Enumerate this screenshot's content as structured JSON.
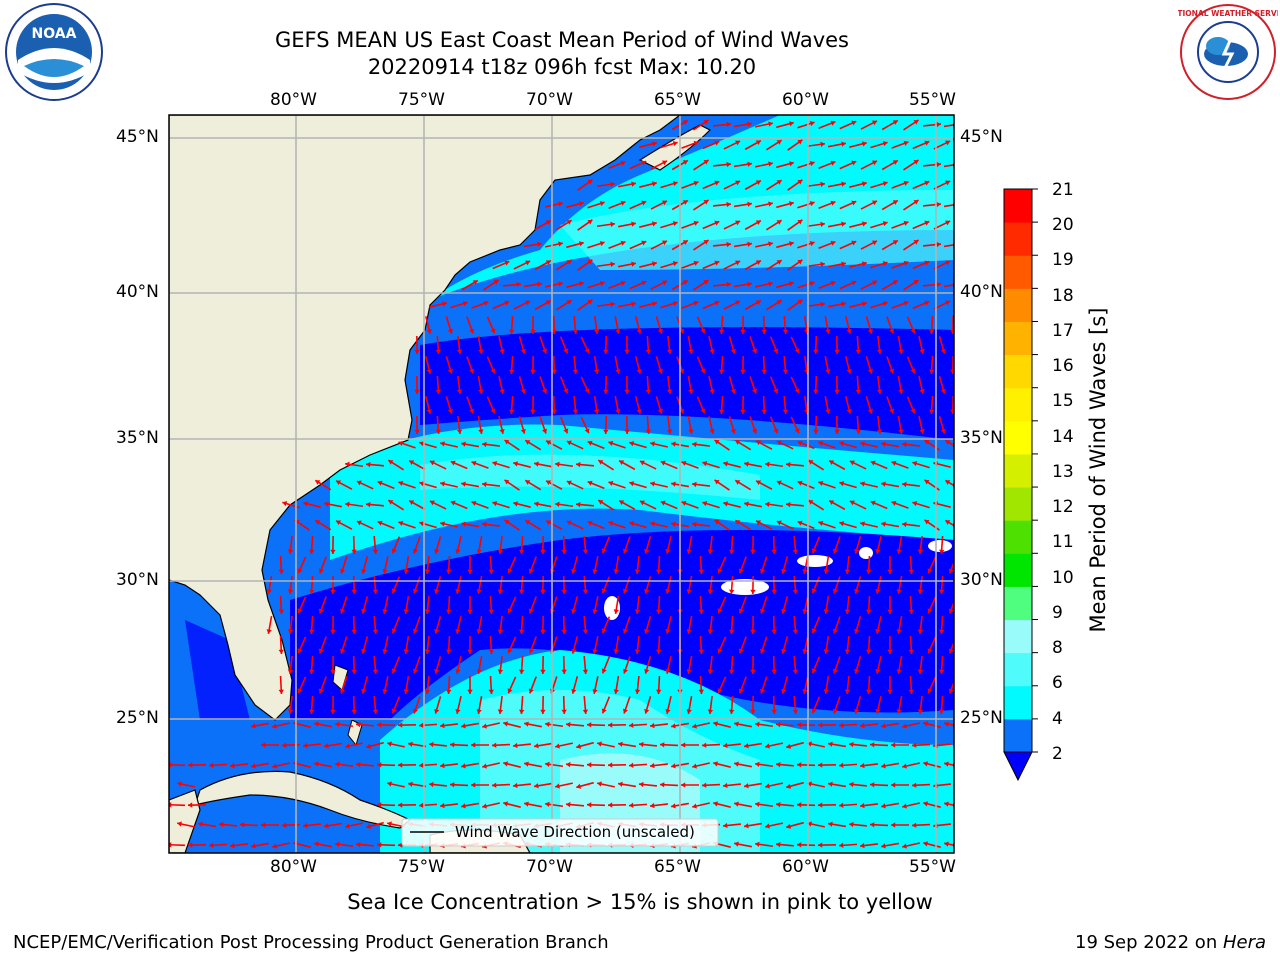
{
  "title_line1": "GEFS MEAN US East Coast Mean Period of Wind Waves",
  "title_line2": "20220914 t18z 096h fcst   Max: 10.20",
  "logos": {
    "left": "noaa-logo",
    "right": "nws-logo",
    "left_text": "NOAA",
    "right_text": "NATIONAL WEATHER SERVICE"
  },
  "map": {
    "lon_labels": [
      "80°W",
      "75°W",
      "70°W",
      "65°W",
      "60°W",
      "55°W"
    ],
    "lat_labels": [
      "45°N",
      "40°N",
      "35°N",
      "30°N",
      "25°N"
    ],
    "legend": "Wind Wave Direction (unscaled)",
    "colors": {
      "land": "#efeedb",
      "band_2_4": "#0b71f9",
      "band_4_6": "#00fafd",
      "band_6_8": "#4ffbfb",
      "below_2": "#0000ff",
      "arrow": "#ff0000"
    }
  },
  "colorbar": {
    "label": "Mean Period of Wind Waves [s]",
    "ticks": [
      "21",
      "20",
      "19",
      "18",
      "17",
      "16",
      "15",
      "14",
      "13",
      "12",
      "11",
      "10",
      "9",
      "8",
      "6",
      "4",
      "2"
    ],
    "colors": [
      "#0b71f9",
      "#00fafd",
      "#4ffbfb",
      "#9afcfa",
      "#4ffe7e",
      "#00e600",
      "#4ee000",
      "#a0e600",
      "#d4f000",
      "#ffff00",
      "#fff000",
      "#ffd800",
      "#ffb200",
      "#ff8c00",
      "#ff5a00",
      "#ff2a00",
      "#ff0000"
    ]
  },
  "subtitle": "Sea Ice Concentration > 15% is shown in pink to yellow",
  "footer_left": "NCEP/EMC/Verification Post Processing Product Generation Branch",
  "footer_right_date": "19 Sep 2022 on ",
  "footer_right_host": "Hera"
}
